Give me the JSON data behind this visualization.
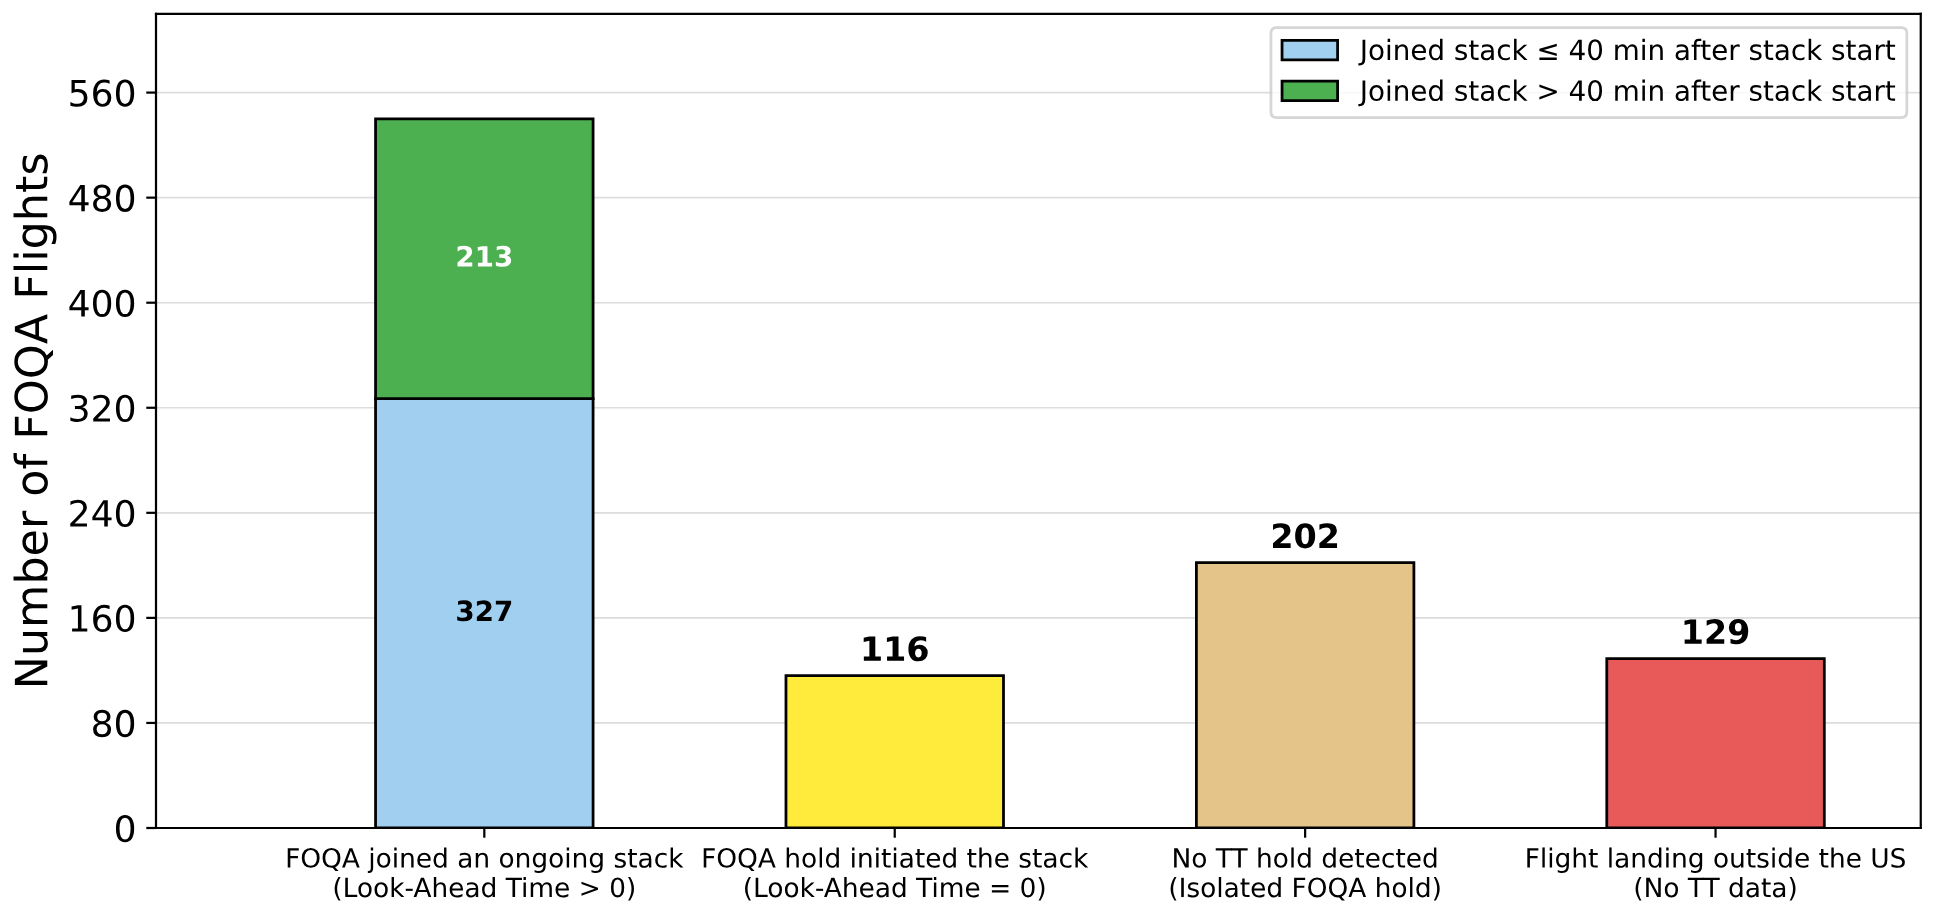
{
  "chart_data": {
    "type": "bar",
    "ylabel": "Number of FOQA Flights",
    "categories": [
      "FOQA joined an ongoing stack\n(Look-Ahead Time > 0)",
      "FOQA hold initiated the stack\n(Look-Ahead Time = 0)",
      "No TT hold detected\n(Isolated FOQA hold)",
      "Flight landing outside the US\n(No TT data)"
    ],
    "stacked": true,
    "series": [
      {
        "name": "Joined stack ≤ 40 min after stack start",
        "color": "#a0cff0",
        "values": [
          327,
          null,
          null,
          null
        ]
      },
      {
        "name": "Joined stack > 40 min after stack start",
        "color": "#4caf50",
        "values": [
          213,
          null,
          null,
          null
        ]
      },
      {
        "colors": [
          null,
          "#ffeb3b",
          "#e5c48a",
          "#e85a5a"
        ],
        "values": [
          null,
          116,
          202,
          129
        ]
      }
    ],
    "ylim": [
      0,
      620
    ],
    "yticks": [
      0,
      80,
      160,
      240,
      320,
      400,
      480,
      560
    ],
    "grid": "y",
    "legend": "top right",
    "data_labels": true
  }
}
